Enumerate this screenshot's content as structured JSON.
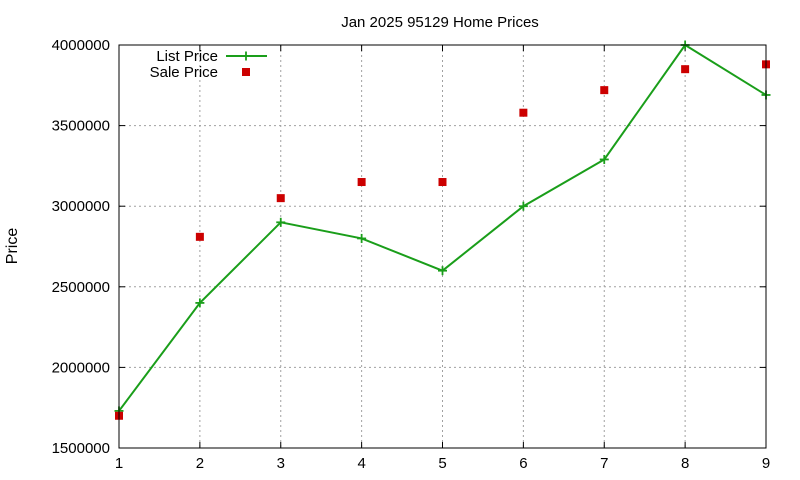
{
  "chart_data": {
    "type": "line",
    "title": "Jan 2025 95129 Home Prices",
    "xlabel": "",
    "ylabel": "Price",
    "xlim": [
      1,
      9
    ],
    "ylim": [
      1500000,
      4000000
    ],
    "x_ticks": [
      1,
      2,
      3,
      4,
      5,
      6,
      7,
      8,
      9
    ],
    "y_ticks": [
      1500000,
      2000000,
      2500000,
      3000000,
      3500000,
      4000000
    ],
    "grid": true,
    "legend_position": "top-left",
    "series": [
      {
        "name": "List Price",
        "style": "linespoints",
        "marker": "plus",
        "color": "#1a9e1a",
        "x": [
          1,
          2,
          3,
          4,
          5,
          6,
          7,
          8,
          9
        ],
        "y": [
          1730000,
          2400000,
          2900000,
          2800000,
          2600000,
          3000000,
          3290000,
          4000000,
          3690000
        ]
      },
      {
        "name": "Sale Price",
        "style": "points",
        "marker": "square",
        "color": "#cc0000",
        "x": [
          1,
          2,
          3,
          4,
          5,
          6,
          7,
          8,
          9
        ],
        "y": [
          1700000,
          2810000,
          3050000,
          3150000,
          3150000,
          3580000,
          3720000,
          3850000,
          3880000
        ]
      }
    ]
  }
}
